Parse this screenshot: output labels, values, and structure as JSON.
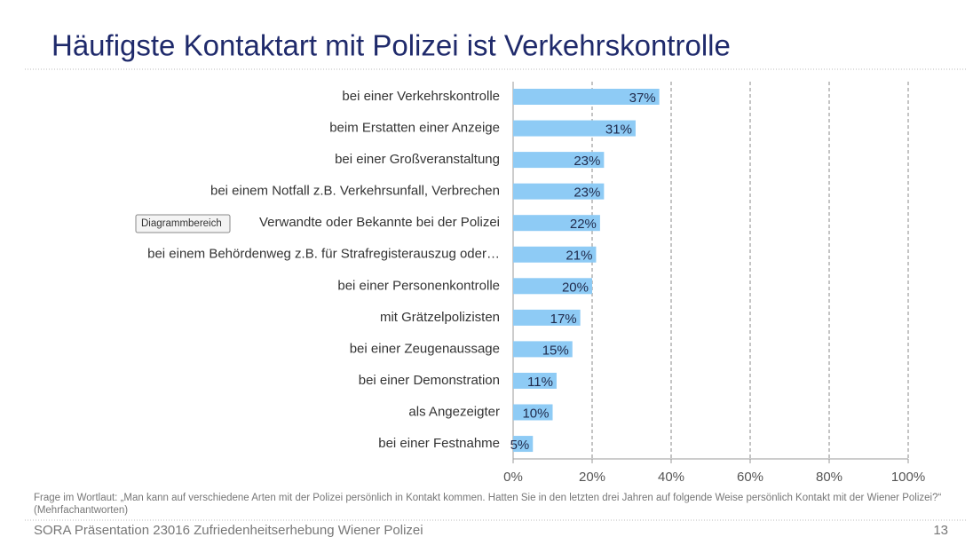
{
  "title": "Häufigste Kontaktart mit Polizei ist Verkehrskontrolle",
  "chart_data": {
    "type": "bar",
    "orientation": "horizontal",
    "categories": [
      "bei einer Verkehrskontrolle",
      "beim Erstatten einer Anzeige",
      "bei einer Großveranstaltung",
      "bei einem Notfall z.B. Verkehrsunfall, Verbrechen",
      "Verwandte oder Bekannte bei der Polizei",
      "bei einem Behördenweg z.B. für Strafregisterauszug oder…",
      "bei einer Personenkontrolle",
      "mit Grätzelpolizisten",
      "bei einer Zeugenaussage",
      "bei einer Demonstration",
      "als Angezeigter",
      "bei einer Festnahme"
    ],
    "values": [
      37,
      31,
      23,
      23,
      22,
      21,
      20,
      17,
      15,
      11,
      10,
      5
    ],
    "value_labels": [
      "37%",
      "31%",
      "23%",
      "23%",
      "22%",
      "21%",
      "20%",
      "17%",
      "15%",
      "11%",
      "10%",
      "5%"
    ],
    "color": "#8ecbf5",
    "xlim": [
      0,
      100
    ],
    "xticks": [
      {
        "value": 0,
        "label": "0%"
      },
      {
        "value": 20,
        "label": "20%"
      },
      {
        "value": 40,
        "label": "40%"
      },
      {
        "value": 60,
        "label": "60%"
      },
      {
        "value": 80,
        "label": "80%"
      },
      {
        "value": 100,
        "label": "100%"
      }
    ],
    "grid": true
  },
  "tooltip": "Diagrammbereich",
  "footnote": "Frage im Wortlaut: „Man kann auf verschiedene Arten mit der Polizei persönlich in Kontakt kommen. Hatten Sie in den letzten drei Jahren auf folgende Weise persönlich Kontakt mit der Wiener Polizei?“ (Mehrfachantworten)",
  "footer": "SORA Präsentation 23016 Zufriedenheitserhebung  Wiener Polizei",
  "page_number": "13"
}
